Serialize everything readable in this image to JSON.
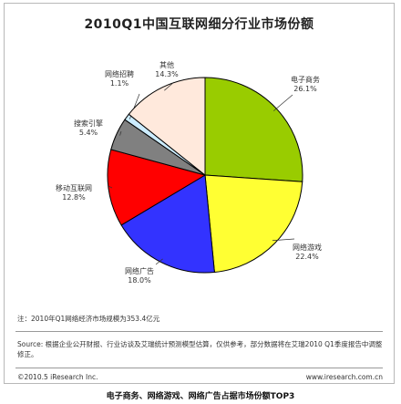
{
  "title": "2010Q1中国互联网细分行业市场份额",
  "chart_data": {
    "type": "pie",
    "slices": [
      {
        "name": "电子商务",
        "value": 26.1,
        "label": "26.1%",
        "color": "#99cc00"
      },
      {
        "name": "网络游戏",
        "value": 22.4,
        "label": "22.4%",
        "color": "#ffff33"
      },
      {
        "name": "网络广告",
        "value": 18.0,
        "label": "18.0%",
        "color": "#3333ff"
      },
      {
        "name": "移动互联网",
        "value": 12.8,
        "label": "12.8%",
        "color": "#ff0000"
      },
      {
        "name": "搜索引擎",
        "value": 5.4,
        "label": "5.4%",
        "color": "#808080"
      },
      {
        "name": "网络招聘",
        "value": 1.1,
        "label": "1.1%",
        "color": "#ccecff"
      },
      {
        "name": "其他",
        "value": 14.3,
        "label": "14.3%",
        "color": "#ffe9dc"
      }
    ]
  },
  "note": "注：2010年Q1网络经济市场规模为353.4亿元",
  "source": "Source: 根据企业公开财报、行业访谈及艾瑞统计预测模型估算，仅供参考，部分数据将在艾瑞2010 Q1季度报告中调整修正。",
  "footer_left": "©2010.5 iResearch Inc.",
  "footer_right": "www.iresearch.com.cn",
  "caption": "电子商务、网络游戏、网络广告占据市场份额TOP3"
}
